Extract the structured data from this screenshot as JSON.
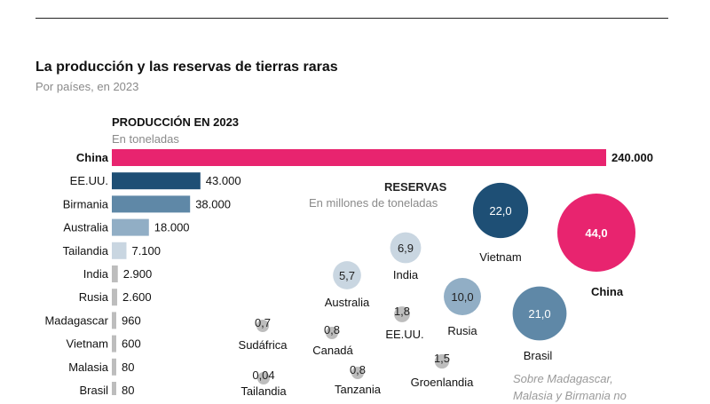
{
  "header": {
    "title": "La producción y las reservas de tierras raras",
    "subtitle": "Por países, en 2023"
  },
  "production": {
    "title": "PRODUCCIÓN EN 2023",
    "unit": "En toneladas"
  },
  "reserves": {
    "title": "RESERVAS",
    "unit": "En millones de toneladas"
  },
  "note": {
    "line1": "Sobre Madagascar,",
    "line2": "Malasia y Birmania no"
  },
  "chart_data": [
    {
      "type": "bar",
      "title": "PRODUCCIÓN EN 2023",
      "categories": [
        "China",
        "EE.UU.",
        "Birmania",
        "Australia",
        "Tailandia",
        "India",
        "Rusia",
        "Madagascar",
        "Vietnam",
        "Malasia",
        "Brasil"
      ],
      "values": [
        240000,
        43000,
        38000,
        18000,
        7100,
        2900,
        2600,
        960,
        600,
        80,
        80
      ],
      "labels": [
        "240.000",
        "43.000",
        "38.000",
        "18.000",
        "7.100",
        "2.900",
        "2.600",
        "960",
        "600",
        "80",
        "80"
      ],
      "colors": [
        "#e8246f",
        "#1e4f75",
        "#5f88a7",
        "#91aec5",
        "#c9d6e1",
        "#bdbdbd",
        "#bdbdbd",
        "#bdbdbd",
        "#bdbdbd",
        "#bdbdbd",
        "#bdbdbd"
      ],
      "highlight": "China"
    },
    {
      "type": "bubble",
      "title": "RESERVAS",
      "items": [
        {
          "country": "China",
          "value": 44.0,
          "label": "44,0",
          "color": "#e8246f",
          "bold": true
        },
        {
          "country": "Vietnam",
          "value": 22.0,
          "label": "22,0",
          "color": "#1e4f75"
        },
        {
          "country": "Brasil",
          "value": 21.0,
          "label": "21,0",
          "color": "#5f88a7"
        },
        {
          "country": "Rusia",
          "value": 10.0,
          "label": "10,0",
          "color": "#91aec5"
        },
        {
          "country": "India",
          "value": 6.9,
          "label": "6,9",
          "color": "#c9d6e1"
        },
        {
          "country": "Australia",
          "value": 5.7,
          "label": "5,7",
          "color": "#c9d6e1"
        },
        {
          "country": "EE.UU.",
          "value": 1.8,
          "label": "1,8",
          "color": "#bdbdbd"
        },
        {
          "country": "Groenlandia",
          "value": 1.5,
          "label": "1,5",
          "color": "#bdbdbd"
        },
        {
          "country": "Canadá",
          "value": 0.8,
          "label": "0,8",
          "color": "#bdbdbd"
        },
        {
          "country": "Tanzania",
          "value": 0.8,
          "label": "0,8",
          "color": "#bdbdbd"
        },
        {
          "country": "Sudáfrica",
          "value": 0.7,
          "label": "0,7",
          "color": "#bdbdbd"
        },
        {
          "country": "Tailandia",
          "value": 0.04,
          "label": "0,04",
          "color": "#bdbdbd"
        }
      ]
    }
  ]
}
